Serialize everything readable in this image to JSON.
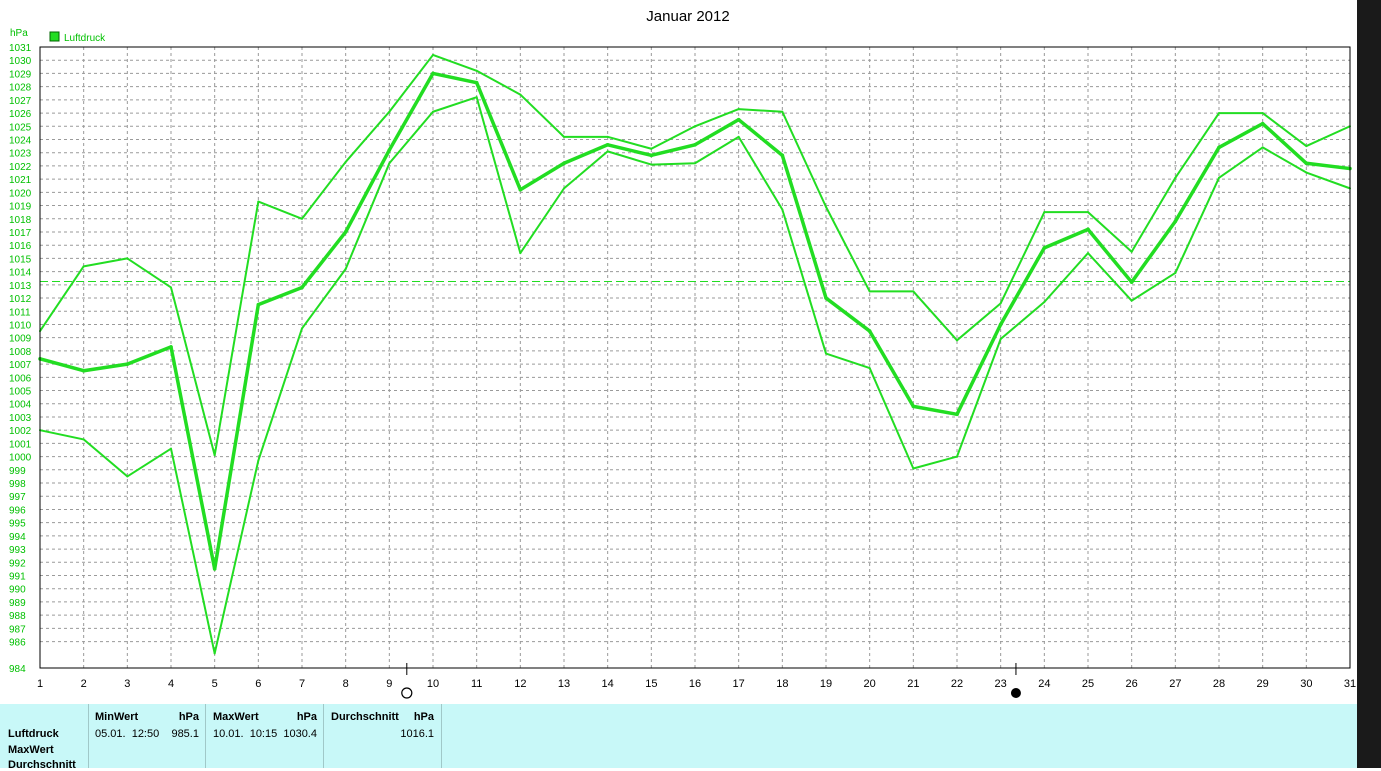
{
  "chart_data": {
    "type": "line",
    "title": "Januar 2012",
    "ylabel": "hPa",
    "legend": [
      {
        "name": "Luftdruck",
        "color": "#22dd22"
      }
    ],
    "legend_placement": "top-left",
    "ylim": [
      984,
      1031
    ],
    "yticks": [
      984,
      986,
      987,
      988,
      989,
      990,
      991,
      992,
      993,
      994,
      995,
      996,
      997,
      998,
      999,
      1000,
      1001,
      1002,
      1003,
      1004,
      1005,
      1006,
      1007,
      1008,
      1009,
      1010,
      1011,
      1012,
      1013,
      1014,
      1015,
      1016,
      1017,
      1018,
      1019,
      1020,
      1021,
      1022,
      1023,
      1024,
      1025,
      1026,
      1027,
      1028,
      1029,
      1030,
      1031
    ],
    "x": [
      1,
      2,
      3,
      4,
      5,
      6,
      7,
      8,
      9,
      10,
      11,
      12,
      13,
      14,
      15,
      16,
      17,
      18,
      19,
      20,
      21,
      22,
      23,
      24,
      25,
      26,
      27,
      28,
      29,
      30,
      31
    ],
    "grid": true,
    "reference_line": 1013.25,
    "series": [
      {
        "role": "max",
        "values": [
          1009.5,
          1014.4,
          1015.0,
          1012.8,
          1000.1,
          1019.3,
          1018.0,
          1022.3,
          1026.1,
          1030.4,
          1029.2,
          1027.4,
          1024.2,
          1024.2,
          1023.3,
          1025.0,
          1026.3,
          1026.1,
          1018.9,
          1012.5,
          1012.5,
          1008.8,
          1011.6,
          1018.5,
          1018.5,
          1015.5,
          1021.1,
          1026.0,
          1026.0,
          1023.5,
          1025.0
        ]
      },
      {
        "role": "mean",
        "values": [
          1007.4,
          1006.5,
          1007.0,
          1008.3,
          991.5,
          1011.5,
          1012.8,
          1017.0,
          1023.2,
          1029.0,
          1028.3,
          1020.2,
          1022.2,
          1023.6,
          1022.8,
          1023.6,
          1025.5,
          1022.8,
          1012.0,
          1009.5,
          1003.8,
          1003.2,
          1010.0,
          1015.8,
          1017.2,
          1013.2,
          1017.8,
          1023.4,
          1025.2,
          1022.2,
          1021.8
        ]
      },
      {
        "role": "min",
        "values": [
          1002.0,
          1001.3,
          998.5,
          1000.6,
          985.1,
          999.7,
          1009.7,
          1014.2,
          1022.2,
          1026.1,
          1027.2,
          1015.4,
          1020.3,
          1023.1,
          1022.1,
          1022.2,
          1024.2,
          1018.7,
          1007.8,
          1006.7,
          999.1,
          1000.0,
          1008.9,
          1011.7,
          1015.4,
          1011.8,
          1013.9,
          1021.1,
          1023.4,
          1021.5,
          1020.3
        ]
      }
    ],
    "moon_phases": [
      {
        "x": 9.4,
        "type": "full"
      },
      {
        "x": 23.35,
        "type": "new"
      }
    ]
  },
  "info": {
    "row_labels": [
      "Luftdruck",
      "MaxWert",
      "Durchschnitt"
    ],
    "min_header": "MinWert",
    "min_unit": "hPa",
    "min_value": "05.01.  12:50    985.1",
    "max_header": "MaxWert",
    "max_unit": "hPa",
    "max_value": "10.01.  10:15  1030.4",
    "avg_header": "Durchschnitt",
    "avg_unit": "hPa",
    "avg_value": "1016.1"
  }
}
